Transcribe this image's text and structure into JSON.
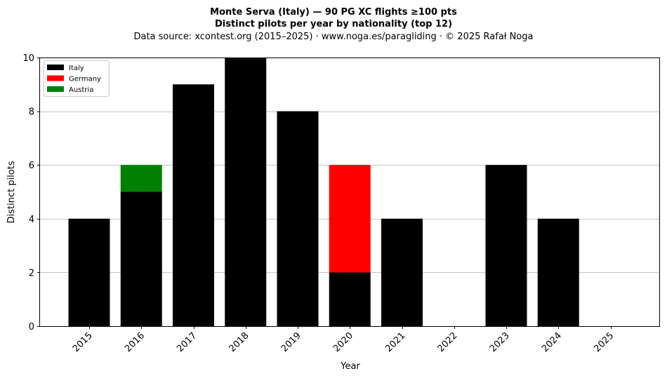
{
  "chart_data": {
    "type": "bar",
    "title_lines": [
      "Monte Serva (Italy)  —  90 PG XC flights ≥100 pts",
      "Distinct pilots per year by nationality (top 12)"
    ],
    "subtitle": "Data source: xcontest.org (2015–2025)  ·  www.noga.es/paragliding  ·  © 2025 Rafał Noga",
    "xlabel": "Year",
    "ylabel": "Distinct pilots",
    "ylim": [
      0,
      10
    ],
    "yticks": [
      0,
      2,
      4,
      6,
      8,
      10
    ],
    "categories": [
      "2015",
      "2016",
      "2017",
      "2018",
      "2019",
      "2020",
      "2021",
      "2022",
      "2023",
      "2024",
      "2025"
    ],
    "stacked": true,
    "grid": "y-major",
    "legend_position": "top-left",
    "series": [
      {
        "name": "Italy",
        "color": "#000000",
        "values": [
          4,
          5,
          9,
          10,
          8,
          2,
          4,
          0,
          6,
          4,
          0
        ]
      },
      {
        "name": "Germany",
        "color": "#ff0000",
        "values": [
          0,
          0,
          0,
          0,
          0,
          4,
          0,
          0,
          0,
          0,
          0
        ]
      },
      {
        "name": "Austria",
        "color": "#008000",
        "values": [
          0,
          1,
          0,
          0,
          0,
          0,
          0,
          0,
          0,
          0,
          0
        ]
      }
    ]
  }
}
